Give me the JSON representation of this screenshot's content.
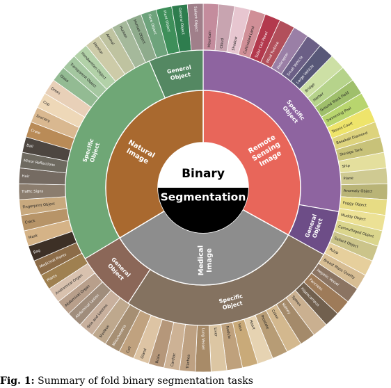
{
  "center": {
    "top_text": "Binary",
    "bottom_text": "Segmentation",
    "top_color": "#ffffff",
    "bottom_color": "#000000"
  },
  "caption": {
    "prefix": "Fig. 1:",
    "text": "Summary of fold binary segmentation tasks"
  },
  "inner_ring": [
    {
      "label": "Remote Sensing Image",
      "color": "#e8665a"
    },
    {
      "label": "Medical Image",
      "color": "#8d8d8d"
    },
    {
      "label": "Natural Image",
      "color": "#a9692f"
    }
  ],
  "middle_ring": [
    {
      "label": "Specific Object",
      "color": "#8e64a0"
    },
    {
      "label": "General Object",
      "color": "#6d4d87"
    },
    {
      "label": "Specific Object",
      "color": "#847260"
    },
    {
      "label": "General Object",
      "color": "#8b6758"
    },
    {
      "label": "Specific Object",
      "color": "#6fa776"
    },
    {
      "label": "General Object",
      "color": "#548862"
    }
  ],
  "outer_ring": [
    {
      "label": "Mountain",
      "color": "#c48c9d"
    },
    {
      "label": "Cloud",
      "color": "#c8a4b0"
    },
    {
      "label": "Shadow",
      "color": "#e7c6d0"
    },
    {
      "label": "Cultivated Land",
      "color": "#d08f97"
    },
    {
      "label": "Solar Cell Panel",
      "color": "#b3394d"
    },
    {
      "label": "Wind Turbine",
      "color": "#b24f5b"
    },
    {
      "label": "Helicopter",
      "color": "#9a7fa6"
    },
    {
      "label": "Small Vehicle",
      "color": "#6b5f86"
    },
    {
      "label": "Large Vehicle",
      "color": "#585878"
    },
    {
      "label": "Bridge",
      "color": "#cde0a5"
    },
    {
      "label": "Harbor",
      "color": "#b6d38b"
    },
    {
      "label": "Ground Track Field",
      "color": "#9fbf6b"
    },
    {
      "label": "Swimming Pool",
      "color": "#b8d56e"
    },
    {
      "label": "Tennis Court",
      "color": "#eee46b"
    },
    {
      "label": "Baseball Diamond",
      "color": "#ddd37d"
    },
    {
      "label": "Storage Tank",
      "color": "#c8c279"
    },
    {
      "label": "Ship",
      "color": "#e4df9d"
    },
    {
      "label": "Plane",
      "color": "#cfca92"
    },
    {
      "label": "Anomaly Object",
      "color": "#b9b477"
    },
    {
      "label": "Foggy Object",
      "color": "#e7dc84"
    },
    {
      "label": "Muddy Object",
      "color": "#ece195"
    },
    {
      "label": "Camouflaged Object",
      "color": "#dad58c"
    },
    {
      "label": "Salient Object",
      "color": "#cbc48a"
    },
    {
      "label": "Polyp",
      "color": "#e6cf9c"
    },
    {
      "label": "Breast Mass Quality",
      "color": "#d7bd93"
    },
    {
      "label": "Hepatic Vessel",
      "color": "#8b7462"
    },
    {
      "label": "Pancreas",
      "color": "#9e7b59"
    },
    {
      "label": "Hippocampus",
      "color": "#71604e"
    },
    {
      "label": "Spleen",
      "color": "#cab090"
    },
    {
      "label": "Kidney",
      "color": "#a48a6a"
    },
    {
      "label": "Colon",
      "color": "#d3b88e"
    },
    {
      "label": "Prostate",
      "color": "#b79c75"
    },
    {
      "label": "Heart",
      "color": "#e6d3b2"
    },
    {
      "label": "Vein",
      "color": "#c9aa79"
    },
    {
      "label": "Nodule",
      "color": "#bfa17c"
    },
    {
      "label": "Liver",
      "color": "#dcc6a3"
    },
    {
      "label": "Lung Vessel",
      "color": "#a88b68"
    },
    {
      "label": "Trachea",
      "color": "#bea182"
    },
    {
      "label": "Cardiac",
      "color": "#cdb295"
    },
    {
      "label": "Brain",
      "color": "#b5977a"
    },
    {
      "label": "Gland",
      "color": "#ddc4a4"
    },
    {
      "label": "Cell",
      "color": "#c0a27f"
    },
    {
      "label": "Mitochondria",
      "color": "#a68f73"
    },
    {
      "label": "Nucleus",
      "color": "#bea88d"
    },
    {
      "label": "Skin and Lesions",
      "color": "#c8b09d"
    },
    {
      "label": "Abdominal Lesion",
      "color": "#a08d7c"
    },
    {
      "label": "Abdominal Organ",
      "color": "#b89f8b"
    },
    {
      "label": "Anatomical Organ",
      "color": "#d8c1ae"
    },
    {
      "label": "Plants",
      "color": "#9f8050"
    },
    {
      "label": "Medicinal Plants",
      "color": "#8c6c48"
    },
    {
      "label": "Bag",
      "color": "#3d3026"
    },
    {
      "label": "Mask",
      "color": "#d5b387"
    },
    {
      "label": "Crack",
      "color": "#b79468"
    },
    {
      "label": "Fingerprint Object",
      "color": "#c8a97e"
    },
    {
      "label": "Traffic Signs",
      "color": "#8b7d6e"
    },
    {
      "label": "Hair",
      "color": "#756b62"
    },
    {
      "label": "Mirror Reflections",
      "color": "#6e6a60"
    },
    {
      "label": "Ball",
      "color": "#4d4640"
    },
    {
      "label": "Crate",
      "color": "#b98b57"
    },
    {
      "label": "Scenery",
      "color": "#d9b890"
    },
    {
      "label": "Cup",
      "color": "#eed8b8"
    },
    {
      "label": "Dress",
      "color": "#e8d0b8"
    },
    {
      "label": "Glass",
      "color": "#93bb93"
    },
    {
      "label": "Transparent Object",
      "color": "#a4c7a0"
    },
    {
      "label": "Handwritten Object",
      "color": "#b2d1a8"
    },
    {
      "label": "Monitor",
      "color": "#cdcba8"
    },
    {
      "label": "Animal",
      "color": "#bfc3a0"
    },
    {
      "label": "Human",
      "color": "#a5b99b"
    },
    {
      "label": "Human Object",
      "color": "#8eab8c"
    },
    {
      "label": "Face Object",
      "color": "#6ea37c"
    },
    {
      "label": "Plant Object",
      "color": "#3e8f5a"
    },
    {
      "label": "General Object",
      "color": "#2e7d4e"
    },
    {
      "label": "Salient Object",
      "color": "#a07f8a"
    }
  ]
}
